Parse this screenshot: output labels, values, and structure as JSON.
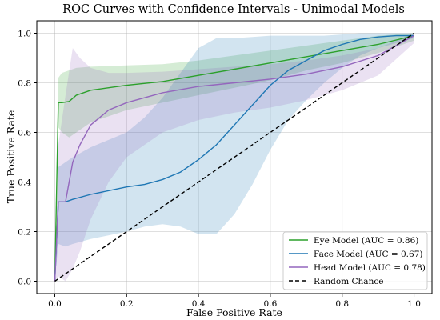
{
  "chart_data": {
    "type": "line",
    "title": "ROC Curves with Confidence Intervals - Unimodal Models",
    "xlabel": "False Positive Rate",
    "ylabel": "True Positive Rate",
    "xlim": [
      -0.05,
      1.05
    ],
    "ylim": [
      -0.05,
      1.05
    ],
    "xticks": [
      "0.0",
      "0.2",
      "0.4",
      "0.6",
      "0.8",
      "1.0"
    ],
    "yticks": [
      "0.0",
      "0.2",
      "0.4",
      "0.6",
      "0.8",
      "1.0"
    ],
    "grid": true,
    "legend_position": "lower-right",
    "series": [
      {
        "name": "Eye Model (AUC = 0.86)",
        "color": "#2ca02c",
        "x": [
          0,
          0.01,
          0.02,
          0.04,
          0.06,
          0.1,
          0.2,
          0.3,
          0.4,
          0.5,
          0.6,
          0.7,
          0.8,
          0.9,
          1.0
        ],
        "y": [
          0,
          0.72,
          0.72,
          0.725,
          0.75,
          0.77,
          0.79,
          0.805,
          0.83,
          0.855,
          0.88,
          0.905,
          0.93,
          0.955,
          0.99
        ],
        "upper": [
          0,
          0.82,
          0.84,
          0.85,
          0.86,
          0.865,
          0.87,
          0.875,
          0.89,
          0.91,
          0.93,
          0.95,
          0.97,
          0.99,
          1.0
        ],
        "lower": [
          0,
          0.62,
          0.6,
          0.58,
          0.6,
          0.64,
          0.69,
          0.72,
          0.75,
          0.78,
          0.81,
          0.85,
          0.88,
          0.92,
          0.97
        ]
      },
      {
        "name": "Face Model (AUC = 0.67)",
        "color": "#1f77b4",
        "x": [
          0,
          0.01,
          0.03,
          0.05,
          0.1,
          0.2,
          0.25,
          0.3,
          0.35,
          0.4,
          0.45,
          0.5,
          0.55,
          0.6,
          0.65,
          0.7,
          0.75,
          0.8,
          0.85,
          0.9,
          0.95,
          1.0
        ],
        "y": [
          0,
          0.32,
          0.32,
          0.33,
          0.35,
          0.38,
          0.39,
          0.41,
          0.44,
          0.49,
          0.55,
          0.63,
          0.71,
          0.79,
          0.85,
          0.89,
          0.93,
          0.955,
          0.975,
          0.985,
          0.99,
          0.99
        ],
        "upper": [
          0,
          0.46,
          0.48,
          0.5,
          0.54,
          0.6,
          0.66,
          0.74,
          0.84,
          0.94,
          0.98,
          0.98,
          0.985,
          0.99,
          0.99,
          0.99,
          0.99,
          0.995,
          1.0,
          1.0,
          1.0,
          1.0
        ],
        "lower": [
          0,
          0.15,
          0.14,
          0.15,
          0.17,
          0.2,
          0.22,
          0.23,
          0.22,
          0.19,
          0.19,
          0.27,
          0.39,
          0.53,
          0.65,
          0.73,
          0.8,
          0.86,
          0.91,
          0.94,
          0.96,
          0.98
        ]
      },
      {
        "name": "Head Model (AUC = 0.78)",
        "color": "#9467bd",
        "x": [
          0,
          0.01,
          0.03,
          0.05,
          0.07,
          0.1,
          0.15,
          0.2,
          0.3,
          0.4,
          0.5,
          0.6,
          0.7,
          0.8,
          0.9,
          1.0
        ],
        "y": [
          0,
          0.32,
          0.32,
          0.48,
          0.55,
          0.63,
          0.69,
          0.72,
          0.76,
          0.785,
          0.8,
          0.815,
          0.835,
          0.865,
          0.91,
          0.99
        ],
        "upper": [
          0,
          0.55,
          0.75,
          0.94,
          0.9,
          0.86,
          0.84,
          0.84,
          0.845,
          0.855,
          0.865,
          0.875,
          0.89,
          0.91,
          0.94,
          1.0
        ],
        "lower": [
          0,
          0.02,
          0.0,
          0.05,
          0.12,
          0.25,
          0.4,
          0.5,
          0.6,
          0.65,
          0.68,
          0.7,
          0.73,
          0.77,
          0.83,
          0.96
        ]
      },
      {
        "name": "Random Chance",
        "color": "#000000",
        "dashed": true,
        "x": [
          0,
          1
        ],
        "y": [
          0,
          1
        ]
      }
    ]
  }
}
